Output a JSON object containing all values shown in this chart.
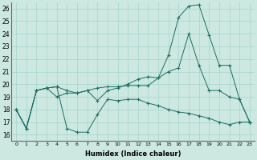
{
  "xlabel": "Humidex (Indice chaleur)",
  "bg_color": "#cce8e0",
  "grid_color": "#a8d4cc",
  "line_color": "#1a6e64",
  "xlim": [
    -0.5,
    23.5
  ],
  "ylim": [
    15.5,
    26.5
  ],
  "yticks": [
    16,
    17,
    18,
    19,
    20,
    21,
    22,
    23,
    24,
    25,
    26
  ],
  "xticks": [
    0,
    1,
    2,
    3,
    4,
    5,
    6,
    7,
    8,
    9,
    10,
    11,
    12,
    13,
    14,
    15,
    16,
    17,
    18,
    19,
    20,
    21,
    22,
    23
  ],
  "series": [
    [
      18.0,
      16.5,
      19.5,
      19.7,
      19.8,
      16.5,
      16.2,
      16.2,
      17.6,
      18.8,
      18.7,
      18.8,
      18.8,
      18.5,
      18.3,
      18.0,
      17.8,
      17.7,
      17.5,
      17.3,
      17.0,
      16.8,
      17.0,
      17.0
    ],
    [
      18.0,
      16.5,
      19.5,
      19.7,
      19.8,
      19.5,
      19.3,
      19.5,
      19.7,
      19.8,
      19.8,
      19.9,
      19.9,
      19.9,
      20.5,
      22.3,
      25.3,
      26.2,
      26.3,
      23.9,
      21.5,
      21.5,
      18.8,
      17.0
    ],
    [
      18.0,
      16.5,
      19.5,
      19.7,
      19.0,
      19.3,
      19.3,
      19.5,
      18.7,
      19.5,
      19.7,
      20.0,
      20.4,
      20.6,
      20.5,
      21.0,
      21.3,
      24.0,
      21.5,
      19.5,
      19.5,
      19.0,
      18.8,
      17.0
    ]
  ]
}
